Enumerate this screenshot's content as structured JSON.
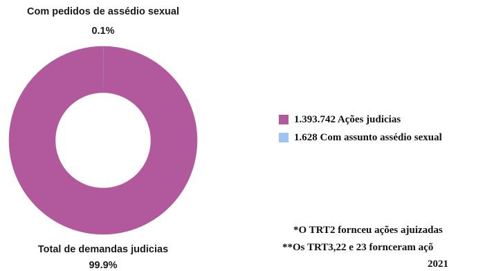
{
  "chart_data": {
    "type": "pie",
    "donut": true,
    "slices": [
      {
        "label": "Total de demandas judicias",
        "percent_label": "99.9%",
        "value": 99.9,
        "color": "#B2599E"
      },
      {
        "label": "Com pedidos de assédio sexual",
        "percent_label": "0.1%",
        "value": 0.1,
        "color": "#9EC3F5"
      }
    ],
    "legend": {
      "placement": "right",
      "entries": [
        {
          "text": "1.393.742 Ações judicias",
          "color": "#B2599E"
        },
        {
          "text": "1.628 Com assunto assédio sexual",
          "color": "#9EC3F5"
        }
      ]
    },
    "notes": [
      "*O TRT2 fornceu ações ajuizadas",
      "**Os TRT3,22 e 23 fornceram açõ",
      "2021"
    ]
  }
}
